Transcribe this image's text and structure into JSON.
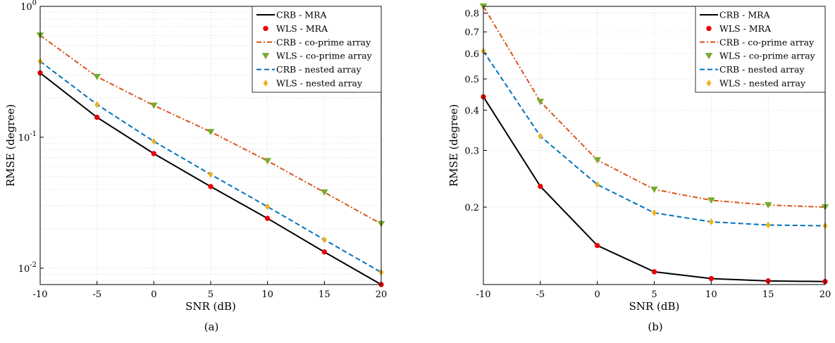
{
  "colors": {
    "mra": "#000000",
    "mra_marker": "#e8000b",
    "coprime": "#d95319",
    "coprime_marker": "#77ac30",
    "nested": "#0072bd",
    "nested_marker": "#edb120"
  },
  "chart_data": [
    {
      "type": "line",
      "caption": "(a)",
      "xlabel": "SNR (dB)",
      "ylabel": "RMSE (degree)",
      "yscale": "log",
      "xlim": [
        -10,
        20
      ],
      "ylim": [
        0.0075,
        1
      ],
      "grid": true,
      "legend_position": "top-right",
      "x": [
        -10,
        -5,
        0,
        5,
        10,
        15,
        20
      ],
      "x_tick_labels": [
        "-10",
        "-5",
        "0",
        "5",
        "10",
        "15",
        "20"
      ],
      "y_ticks": [
        {
          "value": 1,
          "base": "10",
          "exp": "0"
        },
        {
          "value": 0.1,
          "base": "10",
          "exp": "-1"
        },
        {
          "value": 0.01,
          "base": "10",
          "exp": "-2"
        }
      ],
      "series": [
        {
          "name": "CRB - MRA",
          "key": "mra",
          "kind": "line",
          "values": [
            0.31,
            0.142,
            0.075,
            0.042,
            0.024,
            0.0133,
            0.0075
          ]
        },
        {
          "name": "WLS - MRA",
          "key": "mra",
          "kind": "marker",
          "values": [
            0.31,
            0.142,
            0.075,
            0.042,
            0.024,
            0.0133,
            0.0075
          ]
        },
        {
          "name": "CRB - co-prime array",
          "key": "coprime",
          "kind": "line",
          "values": [
            0.6,
            0.29,
            0.175,
            0.11,
            0.066,
            0.038,
            0.0218
          ]
        },
        {
          "name": "WLS - co-prime array",
          "key": "coprime",
          "kind": "marker",
          "values": [
            0.6,
            0.29,
            0.175,
            0.11,
            0.066,
            0.038,
            0.0218
          ]
        },
        {
          "name": "CRB - nested array",
          "key": "nested",
          "kind": "line",
          "values": [
            0.38,
            0.178,
            0.093,
            0.052,
            0.0295,
            0.0165,
            0.0093
          ]
        },
        {
          "name": "WLS - nested array",
          "key": "nested",
          "kind": "marker",
          "values": [
            0.38,
            0.178,
            0.093,
            0.052,
            0.0295,
            0.0165,
            0.0093
          ]
        }
      ]
    },
    {
      "type": "line",
      "caption": "(b)",
      "xlabel": "SNR (dB)",
      "ylabel": "RMSE (degree)",
      "yscale": "log",
      "xlim": [
        -10,
        20
      ],
      "ylim": [
        0.115,
        0.84
      ],
      "grid": true,
      "legend_position": "top-right",
      "x": [
        -10,
        -5,
        0,
        5,
        10,
        15,
        20
      ],
      "x_tick_labels": [
        "-10",
        "-5",
        "0",
        "5",
        "10",
        "15",
        "20"
      ],
      "y_ticks": [
        {
          "value": 0.2,
          "label": "0.2"
        },
        {
          "value": 0.3,
          "label": "0.3"
        },
        {
          "value": 0.4,
          "label": "0.4"
        },
        {
          "value": 0.5,
          "label": "0.5"
        },
        {
          "value": 0.6,
          "label": "0.6"
        },
        {
          "value": 0.7,
          "label": "0.7"
        },
        {
          "value": 0.8,
          "label": "0.8"
        }
      ],
      "series": [
        {
          "name": "CRB - MRA",
          "key": "mra",
          "kind": "line",
          "values": [
            0.44,
            0.232,
            0.152,
            0.126,
            0.12,
            0.118,
            0.1175
          ]
        },
        {
          "name": "WLS - MRA",
          "key": "mra",
          "kind": "marker",
          "values": [
            0.44,
            0.232,
            0.152,
            0.126,
            0.12,
            0.118,
            0.1175
          ]
        },
        {
          "name": "CRB - co-prime array",
          "key": "coprime",
          "kind": "line",
          "values": [
            0.84,
            0.425,
            0.28,
            0.227,
            0.21,
            0.203,
            0.2
          ]
        },
        {
          "name": "WLS - co-prime array",
          "key": "coprime",
          "kind": "marker",
          "values": [
            0.84,
            0.425,
            0.28,
            0.227,
            0.21,
            0.203,
            0.2
          ]
        },
        {
          "name": "CRB - nested array",
          "key": "nested",
          "kind": "line",
          "values": [
            0.61,
            0.332,
            0.235,
            0.192,
            0.18,
            0.176,
            0.175
          ]
        },
        {
          "name": "WLS - nested array",
          "key": "nested",
          "kind": "marker",
          "values": [
            0.61,
            0.332,
            0.235,
            0.192,
            0.18,
            0.176,
            0.175
          ]
        }
      ]
    }
  ]
}
